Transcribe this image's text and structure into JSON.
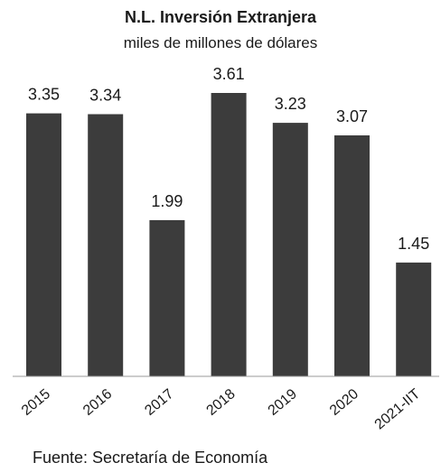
{
  "chart_data": {
    "type": "bar",
    "title": "N.L. Inversión  Extranjera",
    "subtitle": "miles  de millones de dólares",
    "categories": [
      "2015",
      "2016",
      "2017",
      "2018",
      "2019",
      "2020",
      "2021-IIT"
    ],
    "values": [
      3.35,
      3.34,
      1.99,
      3.61,
      3.23,
      3.07,
      1.45
    ],
    "data_labels": [
      "3.35",
      "3.34",
      "1.99",
      "3.61",
      "3.23",
      "3.07",
      "1.45"
    ],
    "ylim": [
      0,
      3.61
    ],
    "grid": false,
    "bar_color": "#3c3c3c",
    "source": "Fuente: Secretaría de Economía"
  }
}
